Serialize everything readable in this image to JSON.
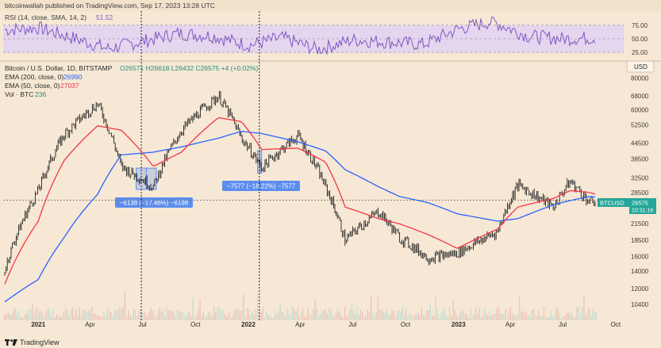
{
  "publisher_line": "bitcoinwallah published on TradingView.com, Sep 17, 2023 13:28 UTC",
  "footer_brand": "TradingView",
  "rsi_panel": {
    "label_prefix": "RSI (14, close, SMA, 14, 2)",
    "value": "51.52",
    "levels": [
      "75.00",
      "50.00",
      "25.00"
    ]
  },
  "main_panel": {
    "symbol_line": "Bitcoin / U.S. Dollar, 1D, BITSTAMP",
    "ohlc": "O26571 H26618 L26432 C26575 +4 (+0.02%)",
    "ema200_label": "EMA (200, close, 0)",
    "ema200_value": "26990",
    "ema50_label": "EMA (50, close, 0)",
    "ema50_value": "27037",
    "vol_label": "Vol · BTC",
    "vol_value": "236",
    "currency_box": "USD",
    "price_tag_symbol": "BTCUSD",
    "price_tag_value": "26575",
    "price_tag_time": "10:31:16",
    "annotation_1": "−6138 (−17.46%) −6198",
    "annotation_2": "−7577 (−18.22%) −7577"
  },
  "colors": {
    "background": "#f6e8d4",
    "ema200": "#2962ff",
    "ema50": "#f23645",
    "candles": "#1e1e1e",
    "rsi": "#7e57c2",
    "rsi_band": "#e4d6ee",
    "annotation_box": "#5b8def",
    "price_tag": "#26a69a"
  },
  "chart_data": [
    {
      "type": "line",
      "title": "RSI (14, close, SMA, 14, 2)",
      "y_ticks": [
        25,
        50,
        75
      ],
      "ylim": [
        15,
        95
      ],
      "x": [
        "2020-11",
        "2021-01",
        "2021-03",
        "2021-05",
        "2021-07",
        "2021-09",
        "2021-11",
        "2022-01",
        "2022-03",
        "2022-05",
        "2022-07",
        "2022-09",
        "2022-11",
        "2023-01",
        "2023-03",
        "2023-05",
        "2023-07",
        "2023-09"
      ],
      "series": [
        {
          "name": "RSI",
          "values": [
            66,
            70,
            52,
            32,
            45,
            60,
            55,
            38,
            52,
            30,
            48,
            44,
            40,
            68,
            82,
            55,
            50,
            52
          ]
        }
      ]
    },
    {
      "type": "line",
      "title": "Bitcoin / U.S. Dollar, 1D, BITSTAMP",
      "yscale": "log",
      "y_ticks": [
        10400,
        12000,
        14000,
        16000,
        18500,
        21500,
        25000,
        28500,
        32500,
        38500,
        44500,
        52500,
        60000,
        68000,
        80000
      ],
      "ylim": [
        9000,
        90000
      ],
      "x_ticks": [
        "2021",
        "Apr",
        "Jul",
        "Oct",
        "2022",
        "Apr",
        "Jul",
        "Oct",
        "2023",
        "Apr",
        "Jul",
        "Oct"
      ],
      "x": [
        "2020-11-01",
        "2021-01-01",
        "2021-02-15",
        "2021-04-14",
        "2021-05-25",
        "2021-07-20",
        "2021-09-07",
        "2021-11-10",
        "2021-12-20",
        "2022-01-24",
        "2022-03-28",
        "2022-05-15",
        "2022-06-18",
        "2022-08-15",
        "2022-09-20",
        "2022-11-09",
        "2022-12-30",
        "2023-03-10",
        "2023-04-14",
        "2023-06-15",
        "2023-07-14",
        "2023-08-17",
        "2023-09-17"
      ],
      "series": [
        {
          "name": "BTCUSD",
          "values": [
            13500,
            29000,
            48000,
            63500,
            36000,
            30000,
            50000,
            68000,
            46500,
            35500,
            47500,
            30000,
            18500,
            24000,
            19000,
            15800,
            16500,
            20000,
            30500,
            25000,
            31500,
            26000,
            26575
          ]
        },
        {
          "name": "EMA (200, close, 0)",
          "values": [
            10500,
            13000,
            19000,
            28000,
            40000,
            41000,
            43000,
            46500,
            49500,
            48500,
            45000,
            41500,
            35000,
            30000,
            27500,
            26000,
            23500,
            22000,
            22500,
            25500,
            26500,
            27500,
            26990
          ]
        },
        {
          "name": "EMA (50, close, 0)",
          "values": [
            12000,
            22000,
            38000,
            52000,
            50000,
            36000,
            41000,
            56000,
            54000,
            42000,
            42500,
            37500,
            25000,
            22500,
            21500,
            19500,
            17200,
            20500,
            25000,
            27000,
            29000,
            28500,
            27037
          ]
        }
      ],
      "annotations": [
        {
          "label": "−6138 (−17.46%) −6198",
          "x_range": [
            "2021-06-20",
            "2021-07-25"
          ],
          "y_range": [
            29300,
            35500
          ]
        },
        {
          "label": "−7577 (−18.22%) −7577",
          "x_range": [
            "2022-01-17",
            "2022-01-24"
          ],
          "y_range": [
            34000,
            41600
          ]
        }
      ]
    }
  ]
}
